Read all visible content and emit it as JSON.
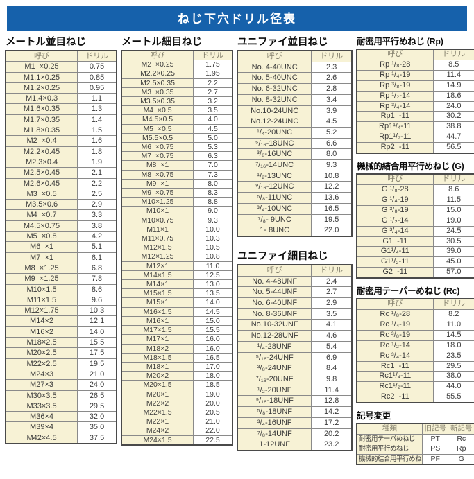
{
  "page": {
    "title": "ねじ下穴ドリル径表",
    "accent_color": "#1661ab",
    "cell_tint_color": "#f7f2d5"
  },
  "tables": {
    "metric_coarse": {
      "title": "メートル並目ねじ",
      "headers": [
        "呼び",
        "ドリル"
      ],
      "rows": [
        [
          "M1  ×0.25",
          "0.75"
        ],
        [
          "M1.1×0.25",
          "0.85"
        ],
        [
          "M1.2×0.25",
          "0.95"
        ],
        [
          "M1.4×0.3",
          "1.1"
        ],
        [
          "M1.6×0.35",
          "1.3"
        ],
        [
          "M1.7×0.35",
          "1.4"
        ],
        [
          "M1.8×0.35",
          "1.5"
        ],
        [
          "M2  ×0.4",
          "1.6"
        ],
        [
          "M2.2×0.45",
          "1.8"
        ],
        [
          "M2.3×0.4",
          "1.9"
        ],
        [
          "M2.5×0.45",
          "2.1"
        ],
        [
          "M2.6×0.45",
          "2.2"
        ],
        [
          "M3  ×0.5",
          "2.5"
        ],
        [
          "M3.5×0.6",
          "2.9"
        ],
        [
          "M4  ×0.7",
          "3.3"
        ],
        [
          "M4.5×0.75",
          "3.8"
        ],
        [
          "M5  ×0.8",
          "4.2"
        ],
        [
          "M6  ×1",
          "5.1"
        ],
        [
          "M7  ×1",
          "6.1"
        ],
        [
          "M8  ×1.25",
          "6.8"
        ],
        [
          "M9  ×1.25",
          "7.8"
        ],
        [
          "M10×1.5",
          "8.6"
        ],
        [
          "M11×1.5",
          "9.6"
        ],
        [
          "M12×1.75",
          "10.3"
        ],
        [
          "M14×2",
          "12.1"
        ],
        [
          "M16×2",
          "14.0"
        ],
        [
          "M18×2.5",
          "15.5"
        ],
        [
          "M20×2.5",
          "17.5"
        ],
        [
          "M22×2.5",
          "19.5"
        ],
        [
          "M24×3",
          "21.0"
        ],
        [
          "M27×3",
          "24.0"
        ],
        [
          "M30×3.5",
          "26.5"
        ],
        [
          "M33×3.5",
          "29.5"
        ],
        [
          "M36×4",
          "32.0"
        ],
        [
          "M39×4",
          "35.0"
        ],
        [
          "M42×4.5",
          "37.5"
        ]
      ]
    },
    "metric_fine": {
      "title": "メートル細目ねじ",
      "headers": [
        "呼び",
        "ドリル"
      ],
      "rows": [
        [
          "M2  ×0.25",
          "1.75"
        ],
        [
          "M2.2×0.25",
          "1.95"
        ],
        [
          "M2.5×0.35",
          "2.2"
        ],
        [
          "M3  ×0.35",
          "2.7"
        ],
        [
          "M3.5×0.35",
          "3.2"
        ],
        [
          "M4  ×0.5",
          "3.5"
        ],
        [
          "M4.5×0.5",
          "4.0"
        ],
        [
          "M5  ×0.5",
          "4.5"
        ],
        [
          "M5.5×0.5",
          "5.0"
        ],
        [
          "M6  ×0.75",
          "5.3"
        ],
        [
          "M7  ×0.75",
          "6.3"
        ],
        [
          "M8  ×1",
          "7.0"
        ],
        [
          "M8  ×0.75",
          "7.3"
        ],
        [
          "M9  ×1",
          "8.0"
        ],
        [
          "M9  ×0.75",
          "8.3"
        ],
        [
          "M10×1.25",
          "8.8"
        ],
        [
          "M10×1",
          "9.0"
        ],
        [
          "M10×0.75",
          "9.3"
        ],
        [
          "M11×1",
          "10.0"
        ],
        [
          "M11×0.75",
          "10.3"
        ],
        [
          "M12×1.5",
          "10.5"
        ],
        [
          "M12×1.25",
          "10.8"
        ],
        [
          "M12×1",
          "11.0"
        ],
        [
          "M14×1.5",
          "12.5"
        ],
        [
          "M14×1",
          "13.0"
        ],
        [
          "M15×1.5",
          "13.5"
        ],
        [
          "M15×1",
          "14.0"
        ],
        [
          "M16×1.5",
          "14.5"
        ],
        [
          "M16×1",
          "15.0"
        ],
        [
          "M17×1.5",
          "15.5"
        ],
        [
          "M17×1",
          "16.0"
        ],
        [
          "M18×2",
          "16.0"
        ],
        [
          "M18×1.5",
          "16.5"
        ],
        [
          "M18×1",
          "17.0"
        ],
        [
          "M20×2",
          "18.0"
        ],
        [
          "M20×1.5",
          "18.5"
        ],
        [
          "M20×1",
          "19.0"
        ],
        [
          "M22×2",
          "20.0"
        ],
        [
          "M22×1.5",
          "20.5"
        ],
        [
          "M22×1",
          "21.0"
        ],
        [
          "M24×2",
          "22.0"
        ],
        [
          "M24×1.5",
          "22.5"
        ]
      ]
    },
    "unified_coarse": {
      "title": "ユニファイ並目ねじ",
      "headers": [
        "呼び",
        "ドリル"
      ],
      "rows": [
        [
          "No. 4-40UNC",
          "2.3"
        ],
        [
          "No. 5-40UNC",
          "2.6"
        ],
        [
          "No. 6-32UNC",
          "2.8"
        ],
        [
          "No. 8-32UNC",
          "3.4"
        ],
        [
          "No.10-24UNC",
          "3.9"
        ],
        [
          "No.12-24UNC",
          "4.5"
        ],
        [
          "¹/₄-20UNC",
          "5.2"
        ],
        [
          "⁵/₁₆-18UNC",
          "6.6"
        ],
        [
          "³/₈-16UNC",
          "8.0"
        ],
        [
          "⁷/₁₆-14UNC",
          "9.3"
        ],
        [
          "¹/₂-13UNC",
          "10.8"
        ],
        [
          "⁹/₁₆-12UNC",
          "12.2"
        ],
        [
          "⁵/₈-11UNC",
          "13.6"
        ],
        [
          "³/₄-10UNC",
          "16.5"
        ],
        [
          "⁷/₈- 9UNC",
          "19.5"
        ],
        [
          "1- 8UNC",
          "22.0"
        ]
      ]
    },
    "unified_fine": {
      "title": "ユニファイ細目ねじ",
      "headers": [
        "呼び",
        "ドリル"
      ],
      "rows": [
        [
          "No. 4-48UNF",
          "2.4"
        ],
        [
          "No. 5-44UNF",
          "2.7"
        ],
        [
          "No. 6-40UNF",
          "2.9"
        ],
        [
          "No. 8-36UNF",
          "3.5"
        ],
        [
          "No.10-32UNF",
          "4.1"
        ],
        [
          "No.12-28UNF",
          "4.6"
        ],
        [
          "¹/₄-28UNF",
          "5.4"
        ],
        [
          "⁵/₁₆-24UNF",
          "6.9"
        ],
        [
          "³/₈-24UNF",
          "8.4"
        ],
        [
          "⁷/₁₆-20UNF",
          "9.8"
        ],
        [
          "¹/₂-20UNF",
          "11.4"
        ],
        [
          "⁹/₁₆-18UNF",
          "12.8"
        ],
        [
          "⁵/₈-18UNF",
          "14.2"
        ],
        [
          "³/₄-16UNF",
          "17.2"
        ],
        [
          "⁷/₈-14UNF",
          "20.2"
        ],
        [
          "1-12UNF",
          "23.2"
        ]
      ]
    },
    "rp": {
      "title": "耐密用平行めねじ (Rp)",
      "headers": [
        "呼び",
        "ドリル"
      ],
      "rows": [
        [
          "Rp ¹/₈-28",
          "8.5"
        ],
        [
          "Rp ¹/₄-19",
          "11.4"
        ],
        [
          "Rp ³/₈-19",
          "14.9"
        ],
        [
          "Rp ¹/₂-14",
          "18.6"
        ],
        [
          "Rp ³/₄-14",
          "24.0"
        ],
        [
          "Rp1  -11",
          "30.2"
        ],
        [
          "Rp1¹/₄-11",
          "38.8"
        ],
        [
          "Rp1¹/₂-11",
          "44.7"
        ],
        [
          "Rp2  -11",
          "56.5"
        ]
      ]
    },
    "g": {
      "title": "機械的結合用平行めねじ (G)",
      "headers": [
        "呼び",
        "ドリル"
      ],
      "rows": [
        [
          "G ¹/₈-28",
          "8.6"
        ],
        [
          "G ¹/₄-19",
          "11.5"
        ],
        [
          "G ³/₈-19",
          "15.0"
        ],
        [
          "G ¹/₂-14",
          "19.0"
        ],
        [
          "G ³/₄-14",
          "24.5"
        ],
        [
          "G1  -11",
          "30.5"
        ],
        [
          "G1¹/₄-11",
          "39.0"
        ],
        [
          "G1¹/₂-11",
          "45.0"
        ],
        [
          "G2  -11",
          "57.0"
        ]
      ]
    },
    "rc": {
      "title": "耐密用テーパーめねじ (Rc)",
      "headers": [
        "呼び",
        "ドリル"
      ],
      "rows": [
        [
          "Rc ¹/₈-28",
          "8.2"
        ],
        [
          "Rc ¹/₄-19",
          "11.0"
        ],
        [
          "Rc ³/₈-19",
          "14.5"
        ],
        [
          "Rc ¹/₂-14",
          "18.0"
        ],
        [
          "Rc ³/₄-14",
          "23.5"
        ],
        [
          "Rc1  -11",
          "29.5"
        ],
        [
          "Rc1¹/₄-11",
          "38.0"
        ],
        [
          "Rc1¹/₂-11",
          "44.0"
        ],
        [
          "Rc2  -11",
          "55.5"
        ]
      ]
    },
    "symbol_change": {
      "title": "記号変更",
      "headers": [
        "種類",
        "旧記号",
        "新記号"
      ],
      "rows": [
        [
          "耐密用テーパめねじ",
          "PT",
          "Rc"
        ],
        [
          "耐密用平行めねじ",
          "PS",
          "Rp"
        ],
        [
          "機械的結合用平行めねじ",
          "PF",
          "G"
        ]
      ]
    }
  }
}
